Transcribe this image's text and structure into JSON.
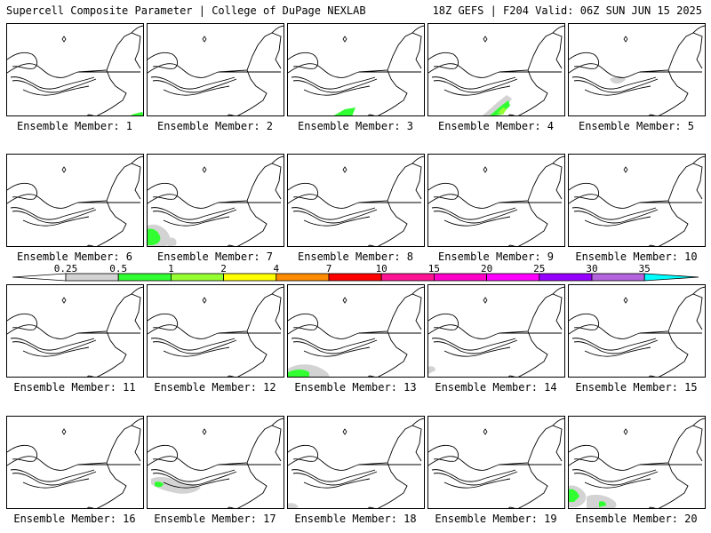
{
  "header": {
    "left_title": "Supercell Composite Parameter | College of DuPage NEXLAB",
    "right_title": "18Z GEFS | F204 Valid: 06Z SUN JUN 15 2025"
  },
  "colorbar": {
    "labels": [
      "0.25",
      "0.5",
      "1",
      "2",
      "4",
      "7",
      "10",
      "15",
      "20",
      "25",
      "30",
      "35"
    ],
    "colors": [
      "#d3d3d3",
      "#32ff32",
      "#96ff32",
      "#ffff00",
      "#ff8c00",
      "#ff0000",
      "#ff1493",
      "#ff00c8",
      "#ff00ff",
      "#9600ff",
      "#b464dc",
      "#00ffff"
    ]
  },
  "panels": [
    {
      "label": "Ensemble Member: 1"
    },
    {
      "label": "Ensemble Member: 2"
    },
    {
      "label": "Ensemble Member: 3"
    },
    {
      "label": "Ensemble Member: 4"
    },
    {
      "label": "Ensemble Member: 5"
    },
    {
      "label": "Ensemble Member: 6"
    },
    {
      "label": "Ensemble Member: 7"
    },
    {
      "label": "Ensemble Member: 8"
    },
    {
      "label": "Ensemble Member: 9"
    },
    {
      "label": "Ensemble Member: 10"
    },
    {
      "label": "Ensemble Member: 11"
    },
    {
      "label": "Ensemble Member: 12"
    },
    {
      "label": "Ensemble Member: 13"
    },
    {
      "label": "Ensemble Member: 14"
    },
    {
      "label": "Ensemble Member: 15"
    },
    {
      "label": "Ensemble Member: 16"
    },
    {
      "label": "Ensemble Member: 17"
    },
    {
      "label": "Ensemble Member: 18"
    },
    {
      "label": "Ensemble Member: 19"
    },
    {
      "label": "Ensemble Member: 20"
    }
  ]
}
